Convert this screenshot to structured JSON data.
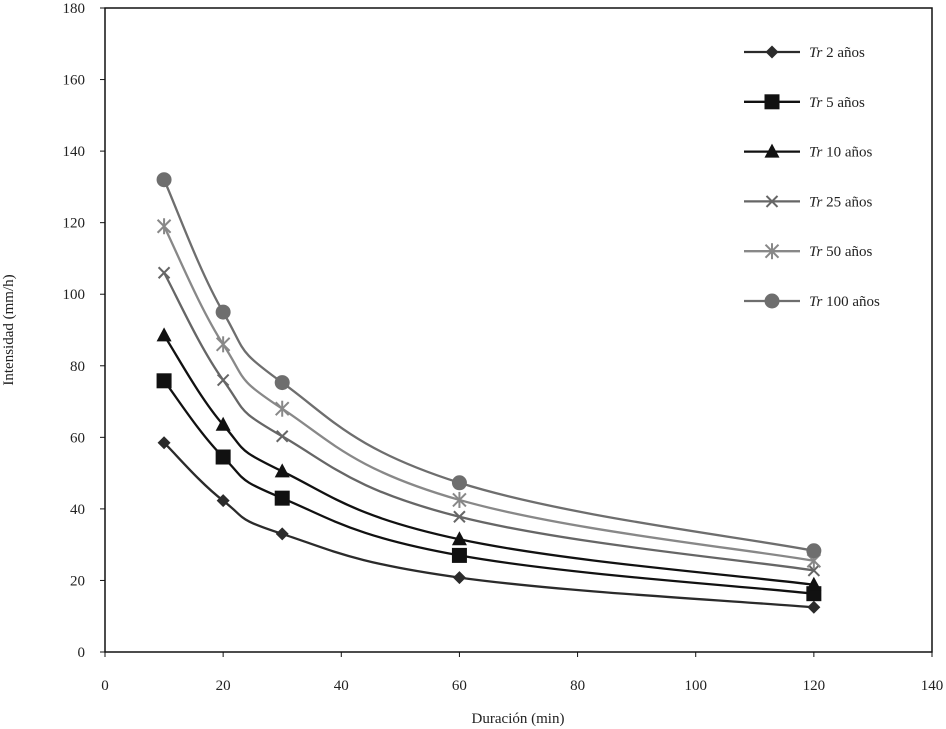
{
  "chart_data": {
    "type": "line",
    "title": "",
    "xlabel": "Duración (min)",
    "ylabel": "Intensidad (mm/h)",
    "xlim": [
      0,
      140
    ],
    "ylim": [
      0,
      180
    ],
    "x_ticks": [
      0,
      20,
      40,
      60,
      80,
      100,
      120,
      140
    ],
    "y_ticks": [
      0,
      20,
      40,
      60,
      80,
      100,
      120,
      140,
      160,
      180
    ],
    "grid": false,
    "legend_position": "top-right",
    "x": [
      10,
      20,
      30,
      60,
      120
    ],
    "series": [
      {
        "name": "2 años",
        "prefix": "Tr",
        "marker": "diamond",
        "color": "#2b2b2b",
        "values": [
          58.5,
          42.3,
          33.0,
          20.8,
          12.5
        ]
      },
      {
        "name": "5 años",
        "prefix": "Tr",
        "marker": "square",
        "color": "#111111",
        "values": [
          75.8,
          54.5,
          43.0,
          27.0,
          16.3
        ]
      },
      {
        "name": "10 años",
        "prefix": "Tr",
        "marker": "triangle",
        "color": "#111111",
        "values": [
          88.5,
          63.5,
          50.5,
          31.5,
          18.8
        ]
      },
      {
        "name": "25 años",
        "prefix": "Tr",
        "marker": "x",
        "color": "#666666",
        "values": [
          106.0,
          76.0,
          60.3,
          37.8,
          22.8
        ]
      },
      {
        "name": "50 años",
        "prefix": "Tr",
        "marker": "star",
        "color": "#888888",
        "values": [
          119.0,
          86.0,
          68.0,
          42.5,
          25.5
        ]
      },
      {
        "name": "100 años",
        "prefix": "Tr",
        "marker": "circle",
        "color": "#6e6e6e",
        "values": [
          132.0,
          95.0,
          75.3,
          47.3,
          28.3
        ]
      }
    ]
  }
}
